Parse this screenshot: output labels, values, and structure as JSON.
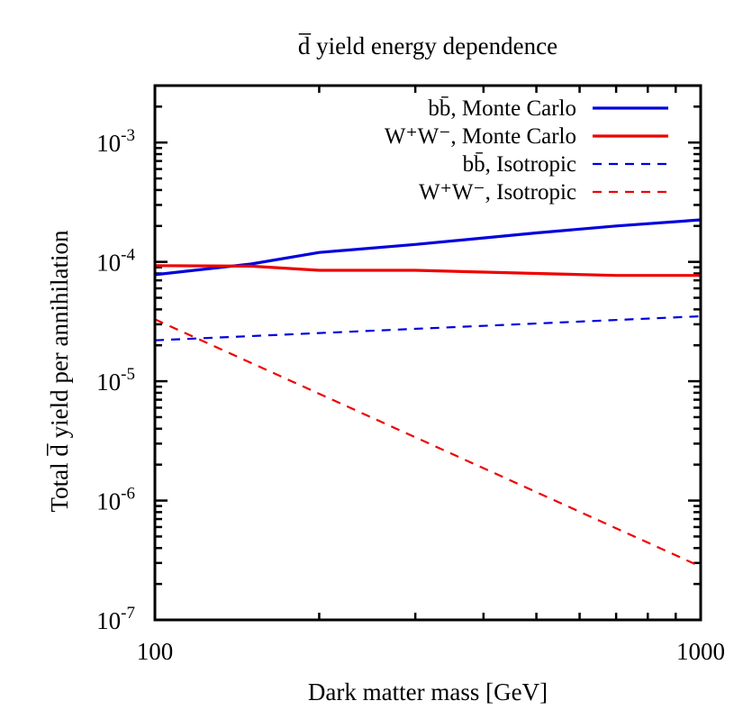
{
  "chart_data": {
    "type": "line",
    "title": "d̅ yield energy dependence",
    "xlabel": "Dark matter mass [GeV]",
    "ylabel": "Total d̅ yield per annihilation",
    "xscale": "log",
    "yscale": "log",
    "xlim": [
      100,
      1000
    ],
    "ylim": [
      1e-07,
      0.003
    ],
    "x_ticks": [
      {
        "value": 100,
        "label": "100"
      },
      {
        "value": 1000,
        "label": "1000"
      }
    ],
    "y_ticks": [
      {
        "value": 1e-07,
        "base": "10",
        "exp": "-7"
      },
      {
        "value": 1e-06,
        "base": "10",
        "exp": "-6"
      },
      {
        "value": 1e-05,
        "base": "10",
        "exp": "-5"
      },
      {
        "value": 0.0001,
        "base": "10",
        "exp": "-4"
      },
      {
        "value": 0.001,
        "base": "10",
        "exp": "-3"
      }
    ],
    "legend_position": "top-right",
    "series": [
      {
        "name": "bb̄, Monte Carlo",
        "color": "#0000dd",
        "style": "solid",
        "x": [
          100,
          150,
          200,
          300,
          500,
          700,
          1000
        ],
        "y": [
          7.8e-05,
          9.6e-05,
          0.00012,
          0.00014,
          0.000175,
          0.0002,
          0.000225
        ]
      },
      {
        "name": "W⁺W⁻, Monte Carlo",
        "color": "#ee0000",
        "style": "solid",
        "x": [
          100,
          150,
          200,
          300,
          500,
          700,
          1000
        ],
        "y": [
          9.3e-05,
          9.2e-05,
          8.5e-05,
          8.5e-05,
          8e-05,
          7.7e-05,
          7.7e-05
        ]
      },
      {
        "name": "bb̄, Isotropic",
        "color": "#0000dd",
        "style": "dashed",
        "x": [
          100,
          1000
        ],
        "y": [
          2.2e-05,
          3.5e-05
        ]
      },
      {
        "name": "W⁺W⁻, Isotropic",
        "color": "#ee0000",
        "style": "dashed",
        "x": [
          100,
          1000
        ],
        "y": [
          3.3e-05,
          2.8e-07
        ]
      }
    ]
  }
}
